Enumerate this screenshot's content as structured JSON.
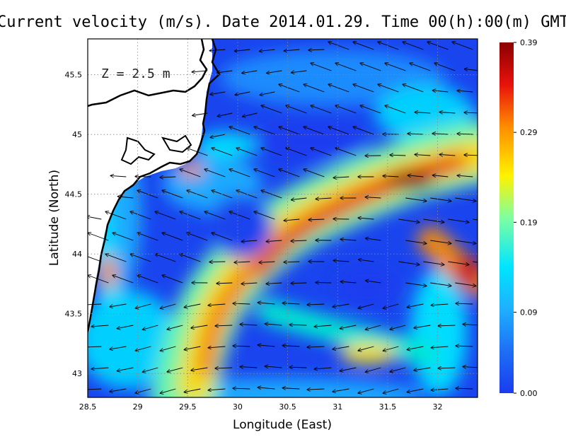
{
  "title": "Current velocity (m/s). Date 2014.01.29. Time 00(h):00(m) GMT",
  "depth_label": "Z = 2.5 m",
  "x_axis": {
    "label": "Longitude (East)",
    "range": [
      28.5,
      32.4
    ],
    "ticks": [
      28.5,
      29,
      29.5,
      30,
      30.5,
      31,
      31.5,
      32
    ],
    "tick_labels": [
      "28.5",
      "29",
      "29.5",
      "30",
      "30.5",
      "31",
      "31.5",
      "32"
    ]
  },
  "y_axis": {
    "label": "Latitude (North)",
    "range": [
      42.8,
      45.8
    ],
    "ticks": [
      43,
      43.5,
      44,
      44.5,
      45,
      45.5
    ],
    "tick_labels": [
      "43",
      "43.5",
      "44",
      "44.5",
      "45",
      "45.5"
    ]
  },
  "colorbar": {
    "min": 0.0,
    "max": 0.39,
    "ticks": [
      0.0,
      0.09,
      0.19,
      0.29,
      0.39
    ],
    "tick_labels": [
      "0.00",
      "0.09",
      "0.19",
      "0.29",
      "0.39"
    ],
    "colors": [
      "#1a3cf0",
      "#1e90ff",
      "#00e5ff",
      "#7fffa0",
      "#fff200",
      "#ff8c00",
      "#e8120c",
      "#8b0000"
    ]
  },
  "chart_data": {
    "type": "heatmap",
    "title": "Current velocity (m/s). Date 2014.01.29. Time 00(h):00(m) GMT",
    "xlabel": "Longitude (East)",
    "ylabel": "Latitude (North)",
    "xlim": [
      28.5,
      32.4
    ],
    "ylim": [
      42.8,
      45.8
    ],
    "value_range": [
      0.0,
      0.39
    ],
    "grid": true,
    "annotation": "Z = 2.5 m",
    "speed_cores": [
      {
        "lon": 31.75,
        "lat": 44.65,
        "speed": 0.37
      },
      {
        "lon": 31.1,
        "lat": 44.45,
        "speed": 0.32
      },
      {
        "lon": 30.5,
        "lat": 44.2,
        "speed": 0.31
      },
      {
        "lon": 30.0,
        "lat": 43.8,
        "speed": 0.27
      },
      {
        "lon": 29.7,
        "lat": 43.3,
        "speed": 0.26
      },
      {
        "lon": 32.3,
        "lat": 43.8,
        "speed": 0.34
      },
      {
        "lon": 28.72,
        "lat": 43.85,
        "speed": 0.3
      },
      {
        "lon": 29.6,
        "lat": 44.75,
        "speed": 0.28
      },
      {
        "lon": 31.45,
        "lat": 43.2,
        "speed": 0.24
      },
      {
        "lon": 29.2,
        "lat": 44.2,
        "speed": 0.18
      },
      {
        "lon": 30.7,
        "lat": 45.4,
        "speed": 0.14
      }
    ],
    "calm_areas": [
      {
        "lon": 29.7,
        "lat": 45.2,
        "speed": 0.03
      },
      {
        "lon": 30.6,
        "lat": 45.0,
        "speed": 0.04
      },
      {
        "lon": 30.0,
        "lat": 44.2,
        "speed": 0.05
      },
      {
        "lon": 31.2,
        "lat": 43.7,
        "speed": 0.04
      },
      {
        "lon": 30.9,
        "lat": 43.3,
        "speed": 0.07
      }
    ]
  }
}
